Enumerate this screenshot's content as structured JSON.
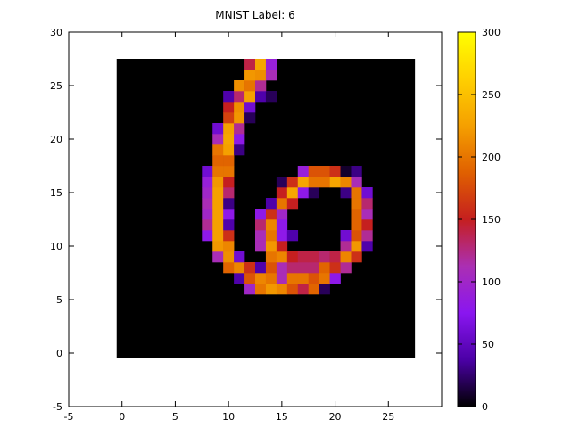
{
  "chart_data": {
    "type": "heatmap",
    "title": "MNIST Label: 6",
    "xlabel": "",
    "ylabel": "",
    "xlim": [
      -5,
      30
    ],
    "ylim": [
      -5,
      30
    ],
    "xticks": [
      -5,
      0,
      5,
      10,
      15,
      20,
      25
    ],
    "yticks": [
      -5,
      0,
      5,
      10,
      15,
      20,
      25,
      30
    ],
    "grid": false,
    "colorbar": {
      "min": 0,
      "max": 300,
      "ticks": [
        0,
        50,
        100,
        150,
        200,
        250,
        300
      ],
      "palette": "gnuplot-pm3d",
      "stops": [
        "#000000",
        "#4b00a6",
        "#8a16f0",
        "#ab2fb3",
        "#c51f1f",
        "#e06000",
        "#f5a000",
        "#ffd000",
        "#ffff00"
      ]
    },
    "grid_size": 28,
    "background": 0,
    "rows_note_y": "row key = image y coordinate (0 = bottom); values listed as [x, value]",
    "pixels": {
      "27": [
        [
          12,
          140
        ],
        [
          13,
          230
        ],
        [
          14,
          90
        ]
      ],
      "26": [
        [
          12,
          220
        ],
        [
          13,
          215
        ],
        [
          14,
          110
        ]
      ],
      "25": [
        [
          11,
          215
        ],
        [
          12,
          200
        ],
        [
          13,
          120
        ]
      ],
      "24": [
        [
          10,
          40
        ],
        [
          11,
          130
        ],
        [
          12,
          225
        ],
        [
          13,
          40
        ],
        [
          14,
          20
        ]
      ],
      "23": [
        [
          10,
          150
        ],
        [
          11,
          215
        ],
        [
          12,
          60
        ]
      ],
      "22": [
        [
          10,
          170
        ],
        [
          11,
          220
        ],
        [
          12,
          20
        ]
      ],
      "21": [
        [
          9,
          60
        ],
        [
          10,
          225
        ],
        [
          11,
          120
        ]
      ],
      "20": [
        [
          9,
          110
        ],
        [
          10,
          230
        ],
        [
          11,
          80
        ]
      ],
      "19": [
        [
          9,
          200
        ],
        [
          10,
          225
        ],
        [
          11,
          30
        ]
      ],
      "18": [
        [
          9,
          190
        ],
        [
          10,
          190
        ]
      ],
      "17": [
        [
          8,
          60
        ],
        [
          9,
          200
        ],
        [
          10,
          200
        ],
        [
          17,
          90
        ],
        [
          18,
          180
        ],
        [
          19,
          180
        ],
        [
          20,
          160
        ],
        [
          21,
          10
        ],
        [
          22,
          30
        ]
      ],
      "16": [
        [
          8,
          90
        ],
        [
          9,
          220
        ],
        [
          10,
          150
        ],
        [
          15,
          20
        ],
        [
          16,
          160
        ],
        [
          17,
          230
        ],
        [
          18,
          200
        ],
        [
          19,
          200
        ],
        [
          20,
          230
        ],
        [
          21,
          210
        ],
        [
          22,
          110
        ]
      ],
      "15": [
        [
          8,
          100
        ],
        [
          9,
          225
        ],
        [
          10,
          130
        ],
        [
          15,
          150
        ],
        [
          16,
          230
        ],
        [
          17,
          80
        ],
        [
          18,
          20
        ],
        [
          21,
          30
        ],
        [
          22,
          200
        ],
        [
          23,
          60
        ]
      ],
      "14": [
        [
          8,
          110
        ],
        [
          9,
          225
        ],
        [
          10,
          30
        ],
        [
          14,
          40
        ],
        [
          15,
          200
        ],
        [
          16,
          150
        ],
        [
          22,
          200
        ],
        [
          23,
          130
        ]
      ],
      "13": [
        [
          8,
          100
        ],
        [
          9,
          225
        ],
        [
          10,
          80
        ],
        [
          13,
          80
        ],
        [
          14,
          160
        ],
        [
          15,
          100
        ],
        [
          22,
          190
        ],
        [
          23,
          110
        ]
      ],
      "12": [
        [
          8,
          120
        ],
        [
          9,
          225
        ],
        [
          10,
          40
        ],
        [
          13,
          130
        ],
        [
          14,
          210
        ],
        [
          15,
          80
        ],
        [
          22,
          190
        ],
        [
          23,
          150
        ]
      ],
      "11": [
        [
          8,
          80
        ],
        [
          9,
          225
        ],
        [
          10,
          160
        ],
        [
          13,
          110
        ],
        [
          14,
          200
        ],
        [
          15,
          80
        ],
        [
          16,
          40
        ],
        [
          21,
          60
        ],
        [
          22,
          180
        ],
        [
          23,
          120
        ]
      ],
      "10": [
        [
          9,
          220
        ],
        [
          10,
          210
        ],
        [
          13,
          110
        ],
        [
          14,
          220
        ],
        [
          15,
          150
        ],
        [
          21,
          120
        ],
        [
          22,
          220
        ],
        [
          23,
          40
        ]
      ],
      "9": [
        [
          9,
          110
        ],
        [
          10,
          215
        ],
        [
          11,
          60
        ],
        [
          14,
          200
        ],
        [
          15,
          210
        ],
        [
          16,
          150
        ],
        [
          17,
          140
        ],
        [
          18,
          140
        ],
        [
          19,
          130
        ],
        [
          20,
          140
        ],
        [
          21,
          210
        ],
        [
          22,
          160
        ]
      ],
      "8": [
        [
          10,
          190
        ],
        [
          11,
          210
        ],
        [
          12,
          160
        ],
        [
          13,
          40
        ],
        [
          14,
          180
        ],
        [
          15,
          110
        ],
        [
          16,
          130
        ],
        [
          17,
          130
        ],
        [
          18,
          130
        ],
        [
          19,
          190
        ],
        [
          20,
          160
        ],
        [
          21,
          120
        ]
      ],
      "7": [
        [
          11,
          40
        ],
        [
          12,
          180
        ],
        [
          13,
          210
        ],
        [
          14,
          200
        ],
        [
          15,
          110
        ],
        [
          16,
          200
        ],
        [
          17,
          200
        ],
        [
          18,
          180
        ],
        [
          19,
          200
        ],
        [
          20,
          80
        ]
      ],
      "6": [
        [
          12,
          100
        ],
        [
          13,
          200
        ],
        [
          14,
          220
        ],
        [
          15,
          210
        ],
        [
          16,
          180
        ],
        [
          17,
          140
        ],
        [
          18,
          190
        ],
        [
          19,
          20
        ]
      ]
    }
  }
}
